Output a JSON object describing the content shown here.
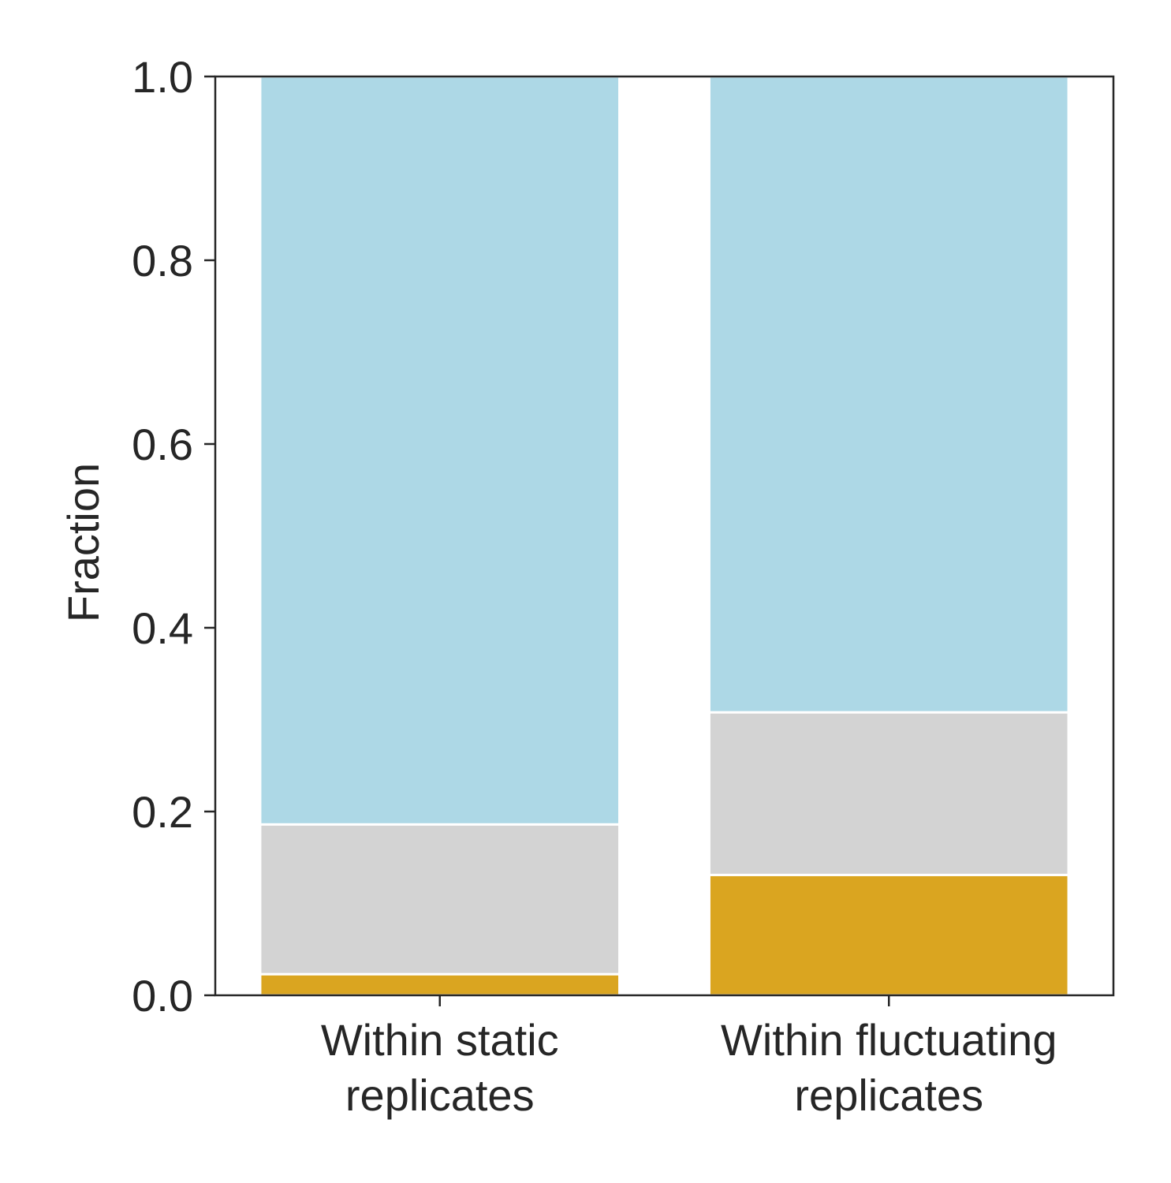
{
  "chart_data": {
    "type": "bar",
    "stacked": true,
    "categories": [
      [
        "Within static",
        "replicates"
      ],
      [
        "Within fluctuating",
        "replicates"
      ]
    ],
    "series": [
      {
        "values": [
          0.023,
          0.131
        ],
        "color": "#DAA520"
      },
      {
        "values": [
          0.163,
          0.177
        ],
        "color": "#D3D3D3"
      },
      {
        "values": [
          0.814,
          0.692
        ],
        "color": "#ADD8E6"
      }
    ],
    "ylabel": "Fraction",
    "ylim": [
      0,
      1.0
    ],
    "yticks": [
      "0.0",
      "0.2",
      "0.4",
      "0.6",
      "0.8",
      "1.0"
    ],
    "ytick_values": [
      0,
      0.2,
      0.4,
      0.6,
      0.8,
      1.0
    ],
    "grid": false,
    "legend": "none"
  }
}
